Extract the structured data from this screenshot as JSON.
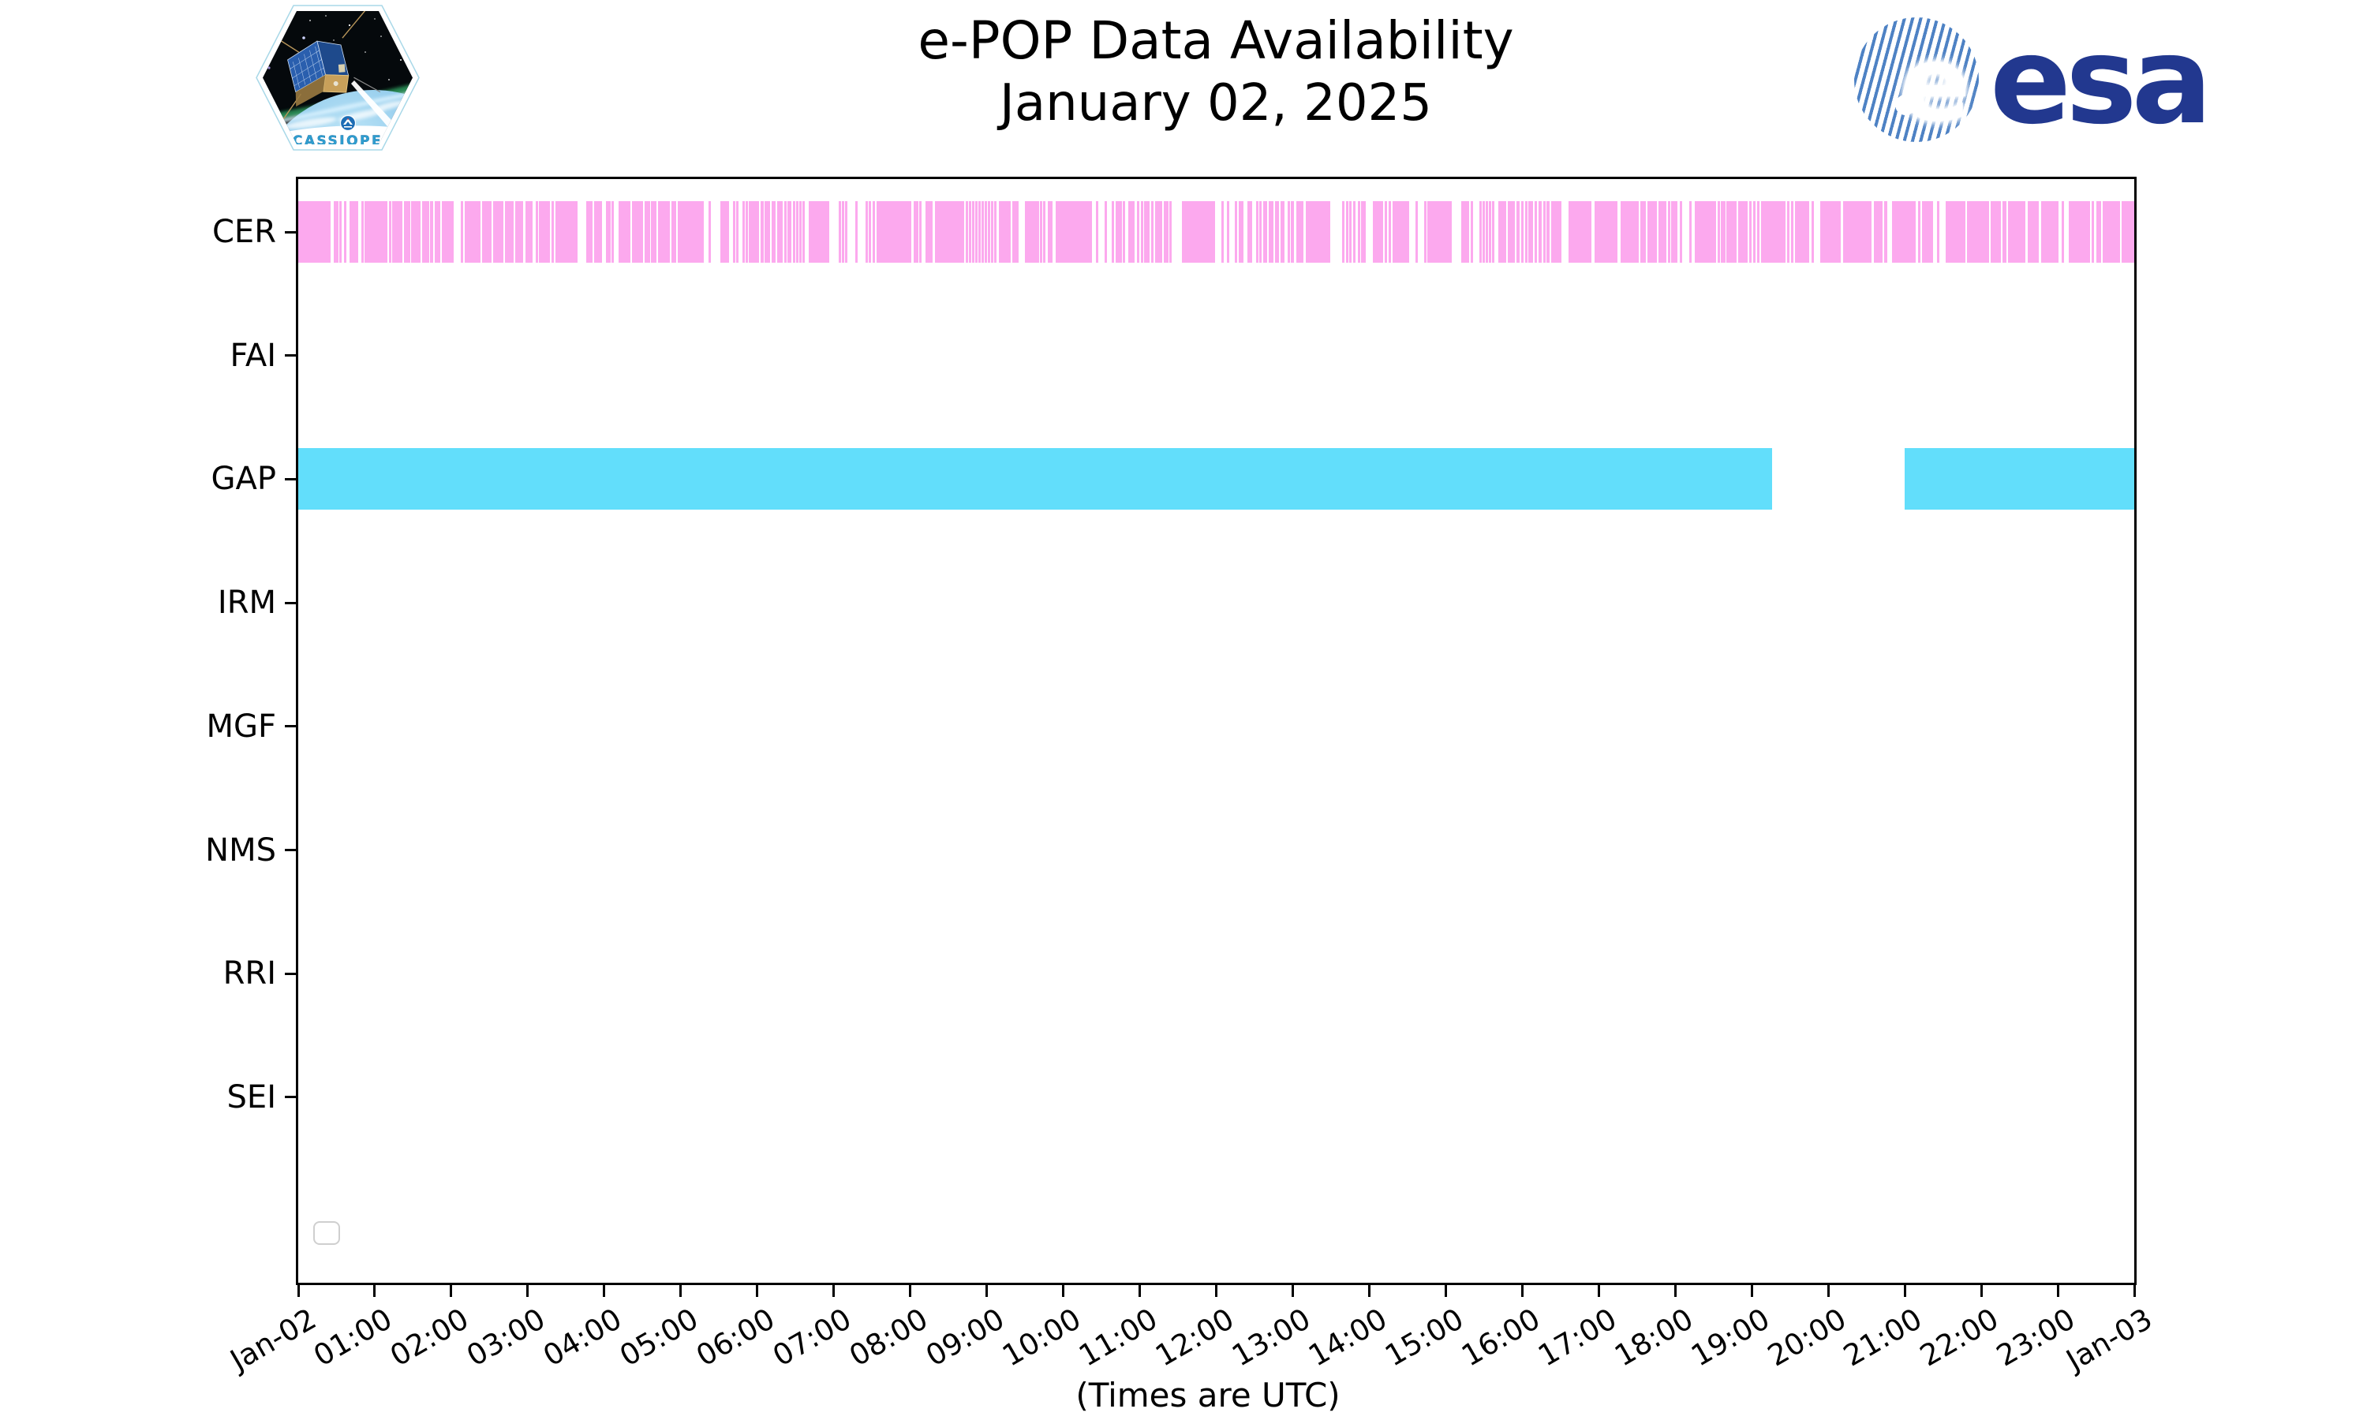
{
  "header": {
    "title_line1": "e-POP Data Availability",
    "title_line2": "January 02, 2025"
  },
  "branding": {
    "cassiope_label": "CASSIOPE",
    "esa_wordmark": "esa"
  },
  "colors": {
    "cer_bar": "#fca9ee",
    "gap_bar": "#62defb",
    "frame": "#000000",
    "esa_navy": "#22388f",
    "esa_stripe": "#4e82c4",
    "cassiope_text": "#2f9fd0",
    "legend_border": "#cfcfcf"
  },
  "chart_data": {
    "type": "broken-bar timeline (data availability)",
    "title": "e-POP Data Availability",
    "subtitle": "January 02, 2025",
    "xlabel": "(Times are UTC)",
    "grid": false,
    "legend": {
      "visible": true,
      "entries": []
    },
    "x_range_hours": [
      0,
      24
    ],
    "x_tick_interval_hours": 1,
    "x_tick_labels": [
      "Jan-02",
      "01:00",
      "02:00",
      "03:00",
      "04:00",
      "05:00",
      "06:00",
      "07:00",
      "08:00",
      "09:00",
      "10:00",
      "11:00",
      "12:00",
      "13:00",
      "14:00",
      "15:00",
      "16:00",
      "17:00",
      "18:00",
      "19:00",
      "20:00",
      "21:00",
      "22:00",
      "23:00",
      "Jan-03"
    ],
    "rows": [
      "CER",
      "FAI",
      "GAP",
      "IRM",
      "MGF",
      "NMS",
      "RRI",
      "SEI"
    ],
    "series": [
      {
        "name": "CER",
        "color": "#fca9ee",
        "intervals_hours": [
          [
            0,
            0.42
          ],
          [
            0.46,
            0.48
          ],
          [
            0.5,
            0.51
          ],
          [
            0.54,
            0.57
          ],
          [
            0.6,
            0.61
          ],
          [
            0.67,
            0.78
          ],
          [
            0.83,
            0.85
          ],
          [
            0.87,
            0.88
          ],
          [
            0.89,
            0.9
          ],
          [
            0.92,
            0.93
          ],
          [
            0.95,
            0.96
          ],
          [
            0.98,
            1.17
          ],
          [
            1.19,
            1.21
          ],
          [
            1.23,
            1.36
          ],
          [
            1.38,
            1.46
          ],
          [
            1.48,
            1.49
          ],
          [
            1.51,
            1.6
          ],
          [
            1.62,
            1.64
          ],
          [
            1.65,
            1.71
          ],
          [
            1.72,
            1.76
          ],
          [
            1.78,
            1.86
          ],
          [
            1.88,
            1.89
          ],
          [
            1.91,
            1.93
          ],
          [
            1.94,
            2.03
          ],
          [
            2.12,
            2.14
          ],
          [
            2.18,
            2.38
          ],
          [
            2.4,
            2.42
          ],
          [
            2.43,
            2.44
          ],
          [
            2.46,
            2.47
          ],
          [
            2.5,
            2.51
          ],
          [
            2.55,
            2.68
          ],
          [
            2.7,
            2.82
          ],
          [
            2.84,
            2.94
          ],
          [
            2.97,
            3.06
          ],
          [
            3.1,
            3.12
          ],
          [
            3.15,
            3.29
          ],
          [
            3.31,
            3.33
          ],
          [
            3.36,
            3.65
          ],
          [
            3.76,
            3.77
          ],
          [
            3.79,
            3.8
          ],
          [
            3.82,
            3.83
          ],
          [
            3.87,
            3.97
          ],
          [
            4.02,
            4.03
          ],
          [
            4.05,
            4.06
          ],
          [
            4.09,
            4.11
          ],
          [
            4.19,
            4.34
          ],
          [
            4.36,
            4.51
          ],
          [
            4.53,
            4.6
          ],
          [
            4.61,
            4.68
          ],
          [
            4.7,
            4.86
          ],
          [
            4.88,
            4.89
          ],
          [
            4.91,
            4.93
          ],
          [
            4.96,
            5.3
          ],
          [
            5.36,
            5.38
          ],
          [
            5.52,
            5.63
          ],
          [
            5.68,
            5.7
          ],
          [
            5.72,
            5.73
          ],
          [
            5.81,
            5.83
          ],
          [
            5.85,
            5.87
          ],
          [
            5.89,
            6.02
          ],
          [
            6.04,
            6.08
          ],
          [
            6.1,
            6.17
          ],
          [
            6.19,
            6.24
          ],
          [
            6.26,
            6.33
          ],
          [
            6.35,
            6.37
          ],
          [
            6.39,
            6.45
          ],
          [
            6.47,
            6.49
          ],
          [
            6.51,
            6.53
          ],
          [
            6.55,
            6.57
          ],
          [
            6.59,
            6.62
          ],
          [
            6.67,
            6.94
          ],
          [
            7.07,
            7.09
          ],
          [
            7.11,
            7.12
          ],
          [
            7.15,
            7.18
          ],
          [
            7.28,
            7.31
          ],
          [
            7.42,
            7.44
          ],
          [
            7.46,
            7.49
          ],
          [
            7.51,
            7.53
          ],
          [
            7.56,
            8.01
          ],
          [
            8.04,
            8.06
          ],
          [
            8.08,
            8.09
          ],
          [
            8.12,
            8.14
          ],
          [
            8.2,
            8.29
          ],
          [
            8.32,
            8.7
          ],
          [
            8.73,
            8.75
          ],
          [
            8.77,
            8.79
          ],
          [
            8.81,
            8.83
          ],
          [
            8.85,
            8.87
          ],
          [
            8.89,
            8.91
          ],
          [
            8.93,
            8.95
          ],
          [
            8.97,
            8.99
          ],
          [
            9.01,
            9.03
          ],
          [
            9.06,
            9.08
          ],
          [
            9.1,
            9.12
          ],
          [
            9.16,
            9.31
          ],
          [
            9.33,
            9.35
          ],
          [
            9.37,
            9.42
          ],
          [
            9.5,
            9.68
          ],
          [
            9.7,
            9.72
          ],
          [
            9.74,
            9.76
          ],
          [
            9.8,
            9.86
          ],
          [
            9.9,
            10.38
          ],
          [
            10.43,
            10.45
          ],
          [
            10.54,
            10.56
          ],
          [
            10.63,
            10.64
          ],
          [
            10.68,
            10.7
          ],
          [
            10.71,
            10.72
          ],
          [
            10.74,
            10.76
          ],
          [
            10.78,
            10.8
          ],
          [
            10.85,
            10.93
          ],
          [
            10.96,
            10.98
          ],
          [
            11.02,
            11.03
          ],
          [
            11.06,
            11.13
          ],
          [
            11.15,
            11.17
          ],
          [
            11.2,
            11.29
          ],
          [
            11.31,
            11.33
          ],
          [
            11.35,
            11.37
          ],
          [
            11.39,
            11.41
          ],
          [
            11.55,
            11.98
          ],
          [
            12.07,
            12.09
          ],
          [
            12.14,
            12.16
          ],
          [
            12.24,
            12.27
          ],
          [
            12.29,
            12.31
          ],
          [
            12.33,
            12.36
          ],
          [
            12.41,
            12.47
          ],
          [
            12.52,
            12.54
          ],
          [
            12.56,
            12.59
          ],
          [
            12.61,
            12.67
          ],
          [
            12.69,
            12.75
          ],
          [
            12.77,
            12.82
          ],
          [
            12.84,
            12.89
          ],
          [
            12.93,
            12.95
          ],
          [
            12.97,
            13.02
          ],
          [
            13.05,
            13.14
          ],
          [
            13.17,
            13.49
          ],
          [
            13.64,
            13.66
          ],
          [
            13.7,
            13.72
          ],
          [
            13.74,
            13.77
          ],
          [
            13.79,
            13.82
          ],
          [
            13.85,
            13.87
          ],
          [
            13.89,
            13.95
          ],
          [
            14.05,
            14.18
          ],
          [
            14.2,
            14.23
          ],
          [
            14.25,
            14.28
          ],
          [
            14.3,
            14.52
          ],
          [
            14.6,
            14.62
          ],
          [
            14.72,
            14.74
          ],
          [
            14.76,
            14.77
          ],
          [
            14.79,
            15.08
          ],
          [
            15.2,
            15.31
          ],
          [
            15.33,
            15.36
          ],
          [
            15.44,
            15.46
          ],
          [
            15.48,
            15.5
          ],
          [
            15.52,
            15.54
          ],
          [
            15.56,
            15.58
          ],
          [
            15.6,
            15.64
          ],
          [
            15.69,
            15.79
          ],
          [
            15.81,
            15.9
          ],
          [
            15.92,
            15.97
          ],
          [
            15.99,
            16.02
          ],
          [
            16.04,
            16.06
          ],
          [
            16.08,
            16.14
          ],
          [
            16.16,
            16.19
          ],
          [
            16.21,
            16.25
          ],
          [
            16.27,
            16.3
          ],
          [
            16.32,
            16.36
          ],
          [
            16.38,
            16.51
          ],
          [
            16.61,
            16.9
          ],
          [
            16.95,
            17.24
          ],
          [
            17.29,
            17.52
          ],
          [
            17.54,
            17.62
          ],
          [
            17.64,
            17.76
          ],
          [
            17.78,
            17.88
          ],
          [
            17.9,
            17.93
          ],
          [
            17.95,
            18.03
          ],
          [
            18.06,
            18.08
          ],
          [
            18.18,
            18.2
          ],
          [
            18.26,
            18.53
          ],
          [
            18.55,
            18.58
          ],
          [
            18.6,
            18.66
          ],
          [
            18.67,
            18.8
          ],
          [
            18.82,
            18.95
          ],
          [
            18.97,
            19.0
          ],
          [
            19.02,
            19.05
          ],
          [
            19.07,
            19.1
          ],
          [
            19.12,
            19.44
          ],
          [
            19.46,
            19.49
          ],
          [
            19.51,
            19.53
          ],
          [
            19.57,
            19.75
          ],
          [
            19.78,
            19.8
          ],
          [
            19.9,
            20.16
          ],
          [
            20.19,
            20.57
          ],
          [
            20.6,
            20.71
          ],
          [
            20.73,
            20.77
          ],
          [
            20.83,
            21.14
          ],
          [
            21.17,
            21.21
          ],
          [
            21.23,
            21.37
          ],
          [
            21.42,
            21.44
          ],
          [
            21.53,
            21.79
          ],
          [
            21.81,
            22.1
          ],
          [
            22.12,
            22.26
          ],
          [
            22.28,
            22.33
          ],
          [
            22.35,
            22.58
          ],
          [
            22.61,
            22.75
          ],
          [
            22.78,
            23.01
          ],
          [
            23.05,
            23.07
          ],
          [
            23.14,
            23.42
          ],
          [
            23.44,
            23.46
          ],
          [
            23.5,
            23.52
          ],
          [
            23.54,
            23.57
          ],
          [
            23.59,
            23.81
          ],
          [
            23.83,
            23.84
          ],
          [
            23.86,
            24.0
          ]
        ]
      },
      {
        "name": "FAI",
        "color": null,
        "intervals_hours": []
      },
      {
        "name": "GAP",
        "color": "#62defb",
        "intervals_hours": [
          [
            0,
            19.27
          ],
          [
            21.0,
            24.0
          ]
        ]
      },
      {
        "name": "IRM",
        "color": null,
        "intervals_hours": []
      },
      {
        "name": "MGF",
        "color": null,
        "intervals_hours": []
      },
      {
        "name": "NMS",
        "color": null,
        "intervals_hours": []
      },
      {
        "name": "RRI",
        "color": null,
        "intervals_hours": []
      },
      {
        "name": "SEI",
        "color": null,
        "intervals_hours": []
      }
    ]
  }
}
